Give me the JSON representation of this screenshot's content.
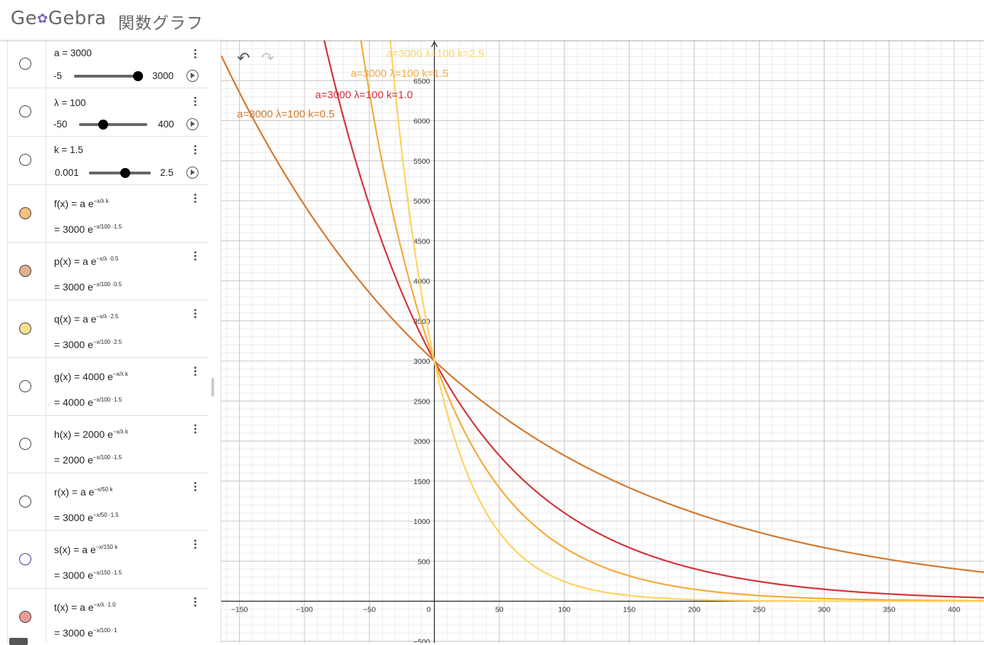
{
  "header": {
    "logo": "GeoGebra",
    "title": "関数グラフ"
  },
  "algebra": {
    "a": {
      "label": "a = 3000",
      "min": "-5",
      "max": "3000",
      "value": 3000
    },
    "lambda": {
      "label": "λ = 100",
      "min": "-50",
      "max": "400",
      "value": 100
    },
    "k": {
      "label": "k = 1.5",
      "min": "0.001",
      "max": "2.5",
      "value": 1.5
    },
    "f": {
      "def": "f(x)  =  a e",
      "def_exp": "−x/λ k",
      "val": "=   3000 e",
      "val_exp": "−x/100 ·1.5",
      "color": "#f4c07a"
    },
    "p": {
      "def": "p(x)  =  a e",
      "def_exp": "−x/λ ·0.5",
      "val": "=   3000 e",
      "val_exp": "−x/100 ·0.5",
      "color": "#e3b08c"
    },
    "q": {
      "def": "q(x)  =  a e",
      "def_exp": "−x/λ ·2.5",
      "val": "=   3000 e",
      "val_exp": "−x/100 ·2.5",
      "color": "#fbe08d"
    },
    "g": {
      "def": "g(x)  =  4000 e",
      "def_exp": "−x/λ k",
      "val": "=   4000 e",
      "val_exp": "−x/100 ·1.5",
      "color": "#ffffff"
    },
    "h": {
      "def": "h(x)  =  2000 e",
      "def_exp": "−x/λ k",
      "val": "=   2000 e",
      "val_exp": "−x/100 ·1.5",
      "color": "#ffffff"
    },
    "r": {
      "def": "r(x)  =  a e",
      "def_exp": "−x/50 k",
      "val": "=   3000 e",
      "val_exp": "−x/50 ·1.5",
      "color": "#ffffff"
    },
    "s": {
      "def": "s(x)  =  a e",
      "def_exp": "−x/150 k",
      "val": "=   3000 e",
      "val_exp": "−x/150 ·1.5",
      "color": "#ffffff"
    },
    "t": {
      "def": "t(x)  =  a e",
      "def_exp": "−x/λ ·1.0",
      "val": "=   3000 e",
      "val_exp": "−x/100 ·1",
      "color": "#ee9a9a"
    }
  },
  "graph": {
    "labels": [
      {
        "text": "a=3000  λ=100  k=2.5",
        "color": "#fdd35e"
      },
      {
        "text": "a=3000  λ=100  k=1.5",
        "color": "#f6a93b"
      },
      {
        "text": "a=3000  λ=100  k=1.0",
        "color": "#d1343a"
      },
      {
        "text": "a=3000  λ=100  k=0.5",
        "color": "#d4772d"
      }
    ],
    "x_ticks": [
      -150,
      -100,
      -50,
      0,
      50,
      100,
      150,
      200,
      250,
      300,
      350,
      400
    ],
    "y_ticks": [
      -500,
      500,
      1000,
      1500,
      2000,
      2500,
      3000,
      3500,
      4000,
      4500,
      5000,
      5500,
      6000,
      6500
    ],
    "xlim": [
      -164,
      423
    ],
    "ylim": [
      -520,
      7000
    ]
  },
  "chart_data": {
    "type": "line",
    "series": [
      {
        "name": "a=3000  λ=100  k=0.5",
        "formula": "3000*exp(-0.005*x)",
        "color": "#d4772d",
        "k": 0.5
      },
      {
        "name": "a=3000  λ=100  k=1.0",
        "formula": "3000*exp(-0.01*x)",
        "color": "#d1343a",
        "k": 1.0
      },
      {
        "name": "a=3000  λ=100  k=1.5",
        "formula": "3000*exp(-0.015*x)",
        "color": "#f6a93b",
        "k": 1.5
      },
      {
        "name": "a=3000  λ=100  k=2.5",
        "formula": "3000*exp(-0.025*x)",
        "color": "#fdd35e",
        "k": 2.5
      }
    ],
    "a": 3000,
    "lambda": 100,
    "xlim": [
      -164,
      423
    ],
    "ylim": [
      -520,
      7000
    ],
    "grid": true
  }
}
